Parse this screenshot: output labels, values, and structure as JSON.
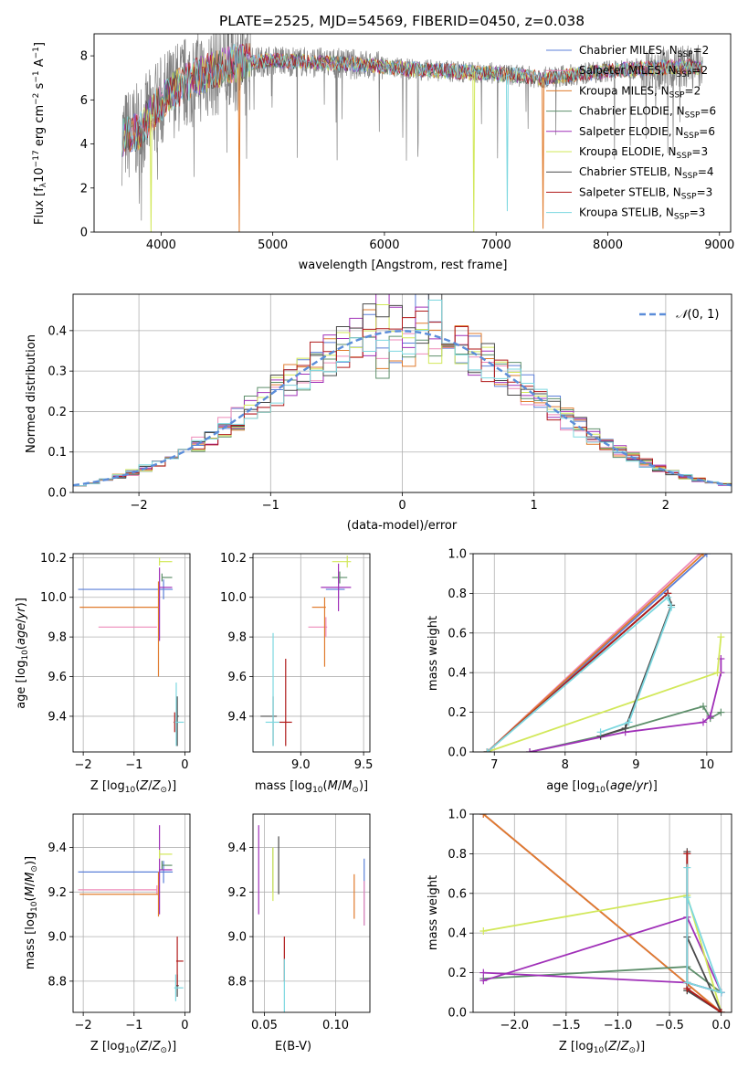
{
  "title": "PLATE=2525, MJD=54569, FIBERID=0450, z=0.038",
  "models": [
    {
      "label": "Chabrier MILES, N",
      "sub": "SSP",
      "sup": "=2",
      "color": "#5b7fd8"
    },
    {
      "label": "Salpeter MILES, N",
      "sub": "SSP",
      "sup": "=2",
      "color": "#ee8ab9"
    },
    {
      "label": "Kroupa MILES, N",
      "sub": "SSP",
      "sup": "=2",
      "color": "#e07b2c"
    },
    {
      "label": "Chabrier ELODIE, N",
      "sub": "SSP",
      "sup": "=6",
      "color": "#5e8f6b"
    },
    {
      "label": "Salpeter ELODIE, N",
      "sub": "SSP",
      "sup": "=6",
      "color": "#a030b8"
    },
    {
      "label": "Kroupa ELODIE, N",
      "sub": "SSP",
      "sup": "=3",
      "color": "#d2e85a"
    },
    {
      "label": "Chabrier STELIB, N",
      "sub": "SSP",
      "sup": "=4",
      "color": "#4a4a4a"
    },
    {
      "label": "Salpeter STELIB, N",
      "sub": "SSP",
      "sup": "=3",
      "color": "#b01a1a"
    },
    {
      "label": "Kroupa STELIB, N",
      "sub": "SSP",
      "sup": "=3",
      "color": "#7dd8e0"
    }
  ],
  "chart_data": [
    {
      "type": "line",
      "id": "spectrum",
      "xlabel": "wavelength [Angstrom, rest frame]",
      "ylabel": "Flux [f_λ 10^-17 erg cm^-2 s^-1 A^-1]",
      "xlim": [
        3400,
        9100
      ],
      "ylim": [
        0,
        9
      ],
      "xticks": [
        4000,
        5000,
        6000,
        7000,
        8000,
        9000
      ],
      "yticks": [
        0,
        2,
        4,
        6,
        8
      ],
      "data_color": "#808080",
      "data_range": [
        3650,
        8850
      ],
      "continuum": [
        [
          3650,
          4.3
        ],
        [
          3800,
          4.6
        ],
        [
          3950,
          5.6
        ],
        [
          4100,
          6.4
        ],
        [
          4300,
          7.0
        ],
        [
          4600,
          7.6
        ],
        [
          5000,
          7.8
        ],
        [
          5400,
          7.7
        ],
        [
          5800,
          7.6
        ],
        [
          6200,
          7.4
        ],
        [
          6600,
          7.3
        ],
        [
          7000,
          7.2
        ],
        [
          7400,
          7.0
        ],
        [
          7800,
          7.2
        ],
        [
          8200,
          7.4
        ],
        [
          8600,
          7.5
        ],
        [
          8850,
          7.5
        ]
      ],
      "model_dips": [
        {
          "x": 3910,
          "y": 0.0,
          "model": 5
        },
        {
          "x": 4700,
          "y": 0.0,
          "model": 2
        },
        {
          "x": 6800,
          "y": 0.0,
          "model": 5
        },
        {
          "x": 7100,
          "y": 0.95,
          "model": 8
        },
        {
          "x": 7420,
          "y": 0.15,
          "model": 2
        }
      ]
    },
    {
      "type": "line",
      "id": "residuals",
      "xlabel": "(data-model)/error",
      "ylabel": "Normed distribution",
      "xlim": [
        -2.5,
        2.5
      ],
      "ylim": [
        0,
        0.49
      ],
      "xticks": [
        -2,
        -1,
        0,
        1,
        2
      ],
      "yticks": [
        0.0,
        0.1,
        0.2,
        0.3,
        0.4
      ],
      "reference_label": "N(0,1)",
      "bin_width": 0.1,
      "bin_start": -2.5
    },
    {
      "type": "scatter",
      "id": "age-vs-Z",
      "xlabel": "Z [log10(Z/Z⊙)]",
      "ylabel": "age  [log10(age/yr)]",
      "xlim": [
        -2.2,
        0.1
      ],
      "ylim": [
        9.22,
        10.22
      ],
      "xticks": [
        -2,
        -1,
        0
      ],
      "yticks": [
        9.4,
        9.6,
        9.8,
        10.0,
        10.2
      ],
      "points": [
        {
          "x": -0.42,
          "y": 10.04,
          "xerr": [
            1.68,
            0.18
          ],
          "yerr": [
            0.05,
            0.05
          ],
          "model": 0
        },
        {
          "x": -0.55,
          "y": 9.85,
          "xerr": [
            1.15,
            0.0
          ],
          "yerr": [
            0.0,
            0.0
          ],
          "model": 1
        },
        {
          "x": -0.52,
          "y": 9.95,
          "xerr": [
            1.55,
            0.0
          ],
          "yerr": [
            0.35,
            0.13
          ],
          "model": 2
        },
        {
          "x": -0.45,
          "y": 10.1,
          "xerr": [
            0.0,
            0.2
          ],
          "yerr": [
            0.02,
            0.02
          ],
          "model": 3
        },
        {
          "x": -0.5,
          "y": 10.05,
          "xerr": [
            0.0,
            0.25
          ],
          "yerr": [
            0.27,
            0.1
          ],
          "model": 4
        },
        {
          "x": -0.5,
          "y": 10.18,
          "xerr": [
            0.0,
            0.25
          ],
          "yerr": [
            0.02,
            0.02
          ],
          "model": 5
        },
        {
          "x": -0.15,
          "y": 9.4,
          "xerr": [
            0.03,
            0.03
          ],
          "yerr": [
            0.15,
            0.1
          ],
          "model": 6
        },
        {
          "x": -0.2,
          "y": 9.37,
          "xerr": [
            0.02,
            0.05
          ],
          "yerr": [
            0.05,
            0.05
          ],
          "model": 7
        },
        {
          "x": -0.17,
          "y": 9.37,
          "xerr": [
            0.03,
            0.15
          ],
          "yerr": [
            0.12,
            0.2
          ],
          "model": 8
        }
      ]
    },
    {
      "type": "scatter",
      "id": "age-vs-mass",
      "xlabel": "mass [log10(M/M⊙)]",
      "ylabel": "",
      "xlim": [
        8.62,
        9.55
      ],
      "ylim": [
        9.22,
        10.22
      ],
      "xticks": [
        9.0,
        9.5
      ],
      "yticks": [
        9.4,
        9.6,
        9.8,
        10.0,
        10.2
      ],
      "points": [
        {
          "x": 9.3,
          "y": 10.04,
          "xerr": [
            0.1,
            0.05
          ],
          "yerr": [
            0.05,
            0.05
          ],
          "model": 0
        },
        {
          "x": 9.2,
          "y": 9.85,
          "xerr": [
            0.14,
            0.01
          ],
          "yerr": [
            0.05,
            0.05
          ],
          "model": 1
        },
        {
          "x": 9.19,
          "y": 9.95,
          "xerr": [
            0.1,
            0.01
          ],
          "yerr": [
            0.3,
            0.05
          ],
          "model": 2
        },
        {
          "x": 9.31,
          "y": 10.1,
          "xerr": [
            0.06,
            0.06
          ],
          "yerr": [
            0.03,
            0.03
          ],
          "model": 3
        },
        {
          "x": 9.3,
          "y": 10.05,
          "xerr": [
            0.14,
            0.1
          ],
          "yerr": [
            0.12,
            0.12
          ],
          "model": 4
        },
        {
          "x": 9.37,
          "y": 10.18,
          "xerr": [
            0.12,
            0.03
          ],
          "yerr": [
            0.03,
            0.03
          ],
          "model": 5
        },
        {
          "x": 8.78,
          "y": 9.4,
          "xerr": [
            0.1,
            0.03
          ],
          "yerr": [
            0.15,
            0.1
          ],
          "model": 6
        },
        {
          "x": 8.88,
          "y": 9.37,
          "xerr": [
            0.05,
            0.05
          ],
          "yerr": [
            0.12,
            0.32
          ],
          "model": 7
        },
        {
          "x": 8.78,
          "y": 9.37,
          "xerr": [
            0.06,
            0.05
          ],
          "yerr": [
            0.12,
            0.45
          ],
          "model": 8
        }
      ]
    },
    {
      "type": "line",
      "id": "weight-vs-age",
      "xlabel": "age  [log10(age/yr)]",
      "ylabel": "mass weight",
      "xlim": [
        6.7,
        10.35
      ],
      "ylim": [
        0,
        1.0
      ],
      "xticks": [
        7,
        8,
        9,
        10
      ],
      "yticks": [
        0.0,
        0.2,
        0.4,
        0.6,
        0.8,
        1.0
      ],
      "series": [
        {
          "model": 0,
          "x": [
            6.9,
            10.0
          ],
          "y": [
            0.0,
            1.0
          ]
        },
        {
          "model": 1,
          "x": [
            6.9,
            9.9
          ],
          "y": [
            0.0,
            1.0
          ]
        },
        {
          "model": 2,
          "x": [
            6.9,
            9.95
          ],
          "y": [
            0.0,
            1.0
          ]
        },
        {
          "model": 3,
          "x": [
            7.5,
            8.5,
            9.95,
            10.05,
            10.2
          ],
          "y": [
            0.0,
            0.08,
            0.23,
            0.17,
            0.2
          ]
        },
        {
          "model": 4,
          "x": [
            7.5,
            8.85,
            9.95,
            10.05,
            10.2,
            10.2
          ],
          "y": [
            0.0,
            0.1,
            0.15,
            0.18,
            0.4,
            0.47
          ]
        },
        {
          "model": 5,
          "x": [
            6.9,
            10.15,
            10.2
          ],
          "y": [
            0.0,
            0.4,
            0.58
          ]
        },
        {
          "model": 6,
          "x": [
            6.9,
            9.45,
            9.5,
            8.85,
            8.5
          ],
          "y": [
            0.0,
            0.8,
            0.74,
            0.12,
            0.08
          ]
        },
        {
          "model": 7,
          "x": [
            6.9,
            9.45
          ],
          "y": [
            0.0,
            0.8
          ]
        },
        {
          "model": 8,
          "x": [
            6.9,
            9.45,
            9.5,
            8.9,
            8.5
          ],
          "y": [
            0.0,
            0.78,
            0.73,
            0.15,
            0.1
          ]
        }
      ]
    },
    {
      "type": "scatter",
      "id": "mass-vs-Z",
      "xlabel": "Z [log10(Z/Z⊙)]",
      "ylabel": "mass [log10(M/M⊙)]",
      "xlim": [
        -2.2,
        0.1
      ],
      "ylim": [
        8.66,
        9.55
      ],
      "xticks": [
        -2,
        -1,
        0
      ],
      "yticks": [
        8.8,
        9.0,
        9.2,
        9.4
      ],
      "points": [
        {
          "x": -0.42,
          "y": 9.29,
          "xerr": [
            1.68,
            0.18
          ],
          "yerr": [
            0.05,
            0.05
          ],
          "model": 0
        },
        {
          "x": -0.55,
          "y": 9.21,
          "xerr": [
            1.55,
            0.0
          ],
          "yerr": [
            0.02,
            0.02
          ],
          "model": 1
        },
        {
          "x": -0.52,
          "y": 9.19,
          "xerr": [
            1.55,
            0.0
          ],
          "yerr": [
            0.1,
            0.1
          ],
          "model": 2
        },
        {
          "x": -0.45,
          "y": 9.32,
          "xerr": [
            0.0,
            0.2
          ],
          "yerr": [
            0.02,
            0.02
          ],
          "model": 3
        },
        {
          "x": -0.5,
          "y": 9.3,
          "xerr": [
            0.0,
            0.25
          ],
          "yerr": [
            0.2,
            0.2
          ],
          "model": 4
        },
        {
          "x": -0.5,
          "y": 9.37,
          "xerr": [
            0.0,
            0.25
          ],
          "yerr": [
            0.02,
            0.02
          ],
          "model": 5
        },
        {
          "x": -0.15,
          "y": 8.78,
          "xerr": [
            0.03,
            0.03
          ],
          "yerr": [
            0.05,
            0.05
          ],
          "model": 6
        },
        {
          "x": -0.15,
          "y": 8.89,
          "xerr": [
            0.02,
            0.12
          ],
          "yerr": [
            0.11,
            0.11
          ],
          "model": 7
        },
        {
          "x": -0.18,
          "y": 8.77,
          "xerr": [
            0.03,
            0.15
          ],
          "yerr": [
            0.06,
            0.06
          ],
          "model": 8
        }
      ]
    },
    {
      "type": "scatter",
      "id": "mass-vs-ebv",
      "xlabel": "E(B-V)",
      "ylabel": "",
      "xlim": [
        0.042,
        0.124
      ],
      "ylim": [
        8.66,
        9.55
      ],
      "xticks": [
        0.05,
        0.1
      ],
      "yticks": [
        8.8,
        9.0,
        9.2,
        9.4
      ],
      "points": [
        {
          "x": 0.12,
          "y": 9.2,
          "yerr": [
            0.15,
            0.15
          ],
          "model": 0
        },
        {
          "x": 0.12,
          "y": 9.15,
          "yerr": [
            0.1,
            0.1
          ],
          "model": 1
        },
        {
          "x": 0.113,
          "y": 9.18,
          "yerr": [
            0.1,
            0.1
          ],
          "model": 2
        },
        {
          "x": 0.056,
          "y": 9.3,
          "yerr": [
            0.1,
            0.1
          ],
          "model": 3
        },
        {
          "x": 0.046,
          "y": 9.3,
          "yerr": [
            0.2,
            0.2
          ],
          "model": 4
        },
        {
          "x": 0.056,
          "y": 9.28,
          "yerr": [
            0.12,
            0.12
          ],
          "model": 5
        },
        {
          "x": 0.06,
          "y": 9.32,
          "yerr": [
            0.13,
            0.13
          ],
          "model": 6
        },
        {
          "x": 0.064,
          "y": 8.9,
          "yerr": [
            0.1,
            0.1
          ],
          "model": 7
        },
        {
          "x": 0.064,
          "y": 8.78,
          "yerr": [
            0.12,
            0.12
          ],
          "model": 8
        }
      ]
    },
    {
      "type": "line",
      "id": "weight-vs-Z",
      "xlabel": "Z [log10(Z/Z⊙)]",
      "ylabel": "mass weight",
      "xlim": [
        -2.4,
        0.1
      ],
      "ylim": [
        0,
        1.0
      ],
      "xticks": [
        -2.0,
        -1.5,
        -1.0,
        -0.5,
        0.0
      ],
      "yticks": [
        0.0,
        0.2,
        0.4,
        0.6,
        0.8,
        1.0
      ],
      "series": [
        {
          "model": 0,
          "x": [
            -2.3,
            0.0
          ],
          "y": [
            1.0,
            0.0
          ]
        },
        {
          "model": 1,
          "x": [
            -2.3,
            0.0
          ],
          "y": [
            1.0,
            0.0
          ]
        },
        {
          "model": 2,
          "x": [
            -2.3,
            0.0
          ],
          "y": [
            1.0,
            0.0
          ]
        },
        {
          "model": 3,
          "x": [
            -2.3,
            -0.33,
            0.0,
            -0.33,
            -0.33
          ],
          "y": [
            0.17,
            0.23,
            0.1,
            0.15,
            0.11
          ]
        },
        {
          "model": 4,
          "x": [
            -2.3,
            -0.33,
            0.0,
            -0.33,
            -2.3
          ],
          "y": [
            0.2,
            0.15,
            0.1,
            0.48,
            0.16
          ]
        },
        {
          "model": 5,
          "x": [
            -2.3,
            -0.33,
            0.0
          ],
          "y": [
            0.41,
            0.59,
            0.0
          ]
        },
        {
          "model": 6,
          "x": [
            -0.33,
            -0.33,
            0.0,
            -0.33
          ],
          "y": [
            0.81,
            0.11,
            0.0,
            0.38
          ]
        },
        {
          "model": 7,
          "x": [
            -0.33,
            -0.33,
            0.0
          ],
          "y": [
            0.8,
            0.12,
            0.0
          ]
        },
        {
          "model": 8,
          "x": [
            -0.33,
            -0.33,
            0.0,
            -0.33
          ],
          "y": [
            0.73,
            0.15,
            0.1,
            0.58
          ]
        }
      ]
    }
  ]
}
